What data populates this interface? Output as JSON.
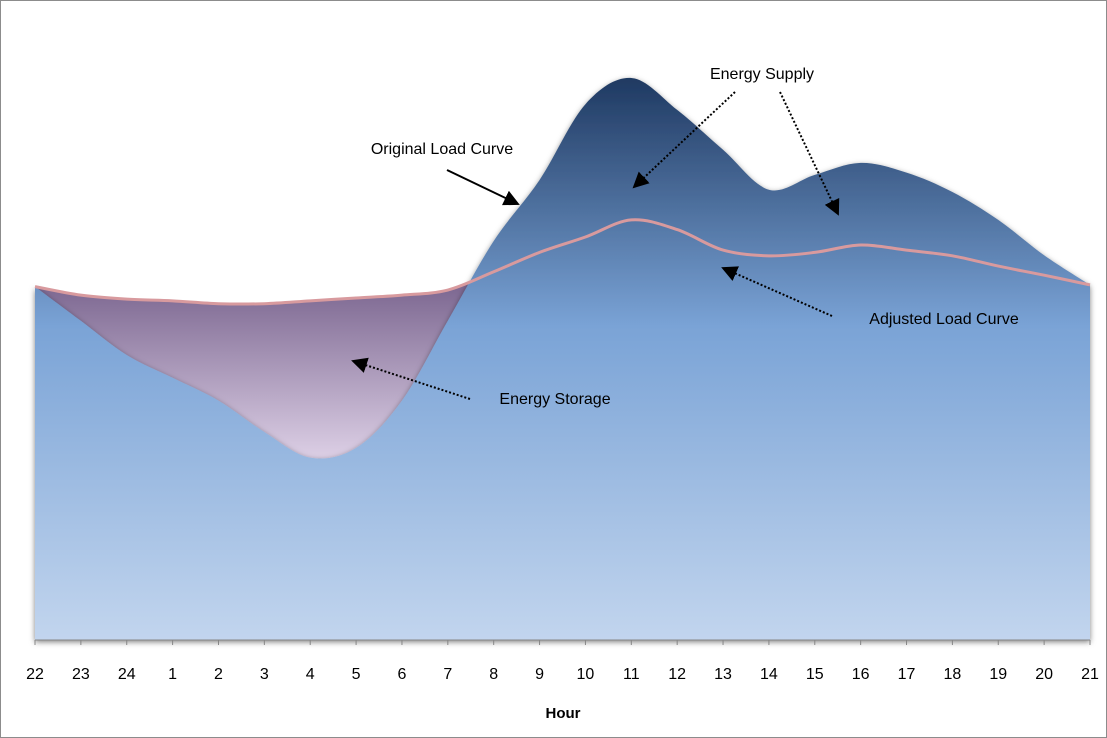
{
  "chart_data": {
    "type": "area",
    "x_label": "Hour",
    "categories": [
      "22",
      "23",
      "24",
      "1",
      "2",
      "3",
      "4",
      "5",
      "6",
      "7",
      "8",
      "9",
      "10",
      "11",
      "12",
      "13",
      "14",
      "15",
      "16",
      "17",
      "18",
      "19",
      "20",
      "21"
    ],
    "ylim": [
      0,
      100
    ],
    "series": [
      {
        "name": "Original Load Curve",
        "color": "#1f3a63",
        "values": [
          62,
          56,
          50,
          46,
          42,
          36.5,
          32,
          33.7,
          42,
          56,
          70,
          80.7,
          94,
          98.6,
          93,
          86,
          79,
          81.6,
          83.7,
          82,
          78.6,
          73.7,
          67.5,
          62.3
        ]
      },
      {
        "name": "Adjusted Load Curve",
        "color": "#d89a9e",
        "values": [
          62,
          60.5,
          59.8,
          59.5,
          59,
          59,
          59.5,
          60,
          60.5,
          61.4,
          64.6,
          68,
          70.7,
          73.7,
          72,
          68.4,
          67.4,
          68,
          69.3,
          68.4,
          67.4,
          65.6,
          64,
          62.3
        ]
      }
    ],
    "annotations": [
      "Energy Supply",
      "Energy Storage"
    ]
  }
}
